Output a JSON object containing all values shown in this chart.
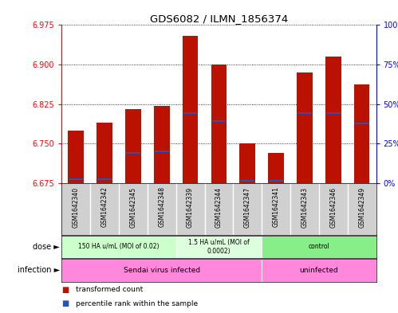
{
  "title": "GDS6082 / ILMN_1856374",
  "samples": [
    "GSM1642340",
    "GSM1642342",
    "GSM1642345",
    "GSM1642348",
    "GSM1642339",
    "GSM1642344",
    "GSM1642347",
    "GSM1642341",
    "GSM1642343",
    "GSM1642346",
    "GSM1642349"
  ],
  "transformed_counts": [
    6.775,
    6.79,
    6.815,
    6.822,
    6.955,
    6.9,
    6.75,
    6.732,
    6.885,
    6.915,
    6.863
  ],
  "percentile_values": [
    6.683,
    6.683,
    6.733,
    6.735,
    6.808,
    6.793,
    6.68,
    6.679,
    6.808,
    6.808,
    6.788
  ],
  "ymin": 6.675,
  "ymax": 6.975,
  "yticks": [
    6.675,
    6.75,
    6.825,
    6.9,
    6.975
  ],
  "right_yticks": [
    0,
    25,
    50,
    75,
    100
  ],
  "bar_color": "#bb1100",
  "percentile_color": "#2255bb",
  "dose_groups": [
    {
      "label": "150 HA u/mL (MOI of 0.02)",
      "start": 0,
      "end": 4,
      "color": "#ccffcc"
    },
    {
      "label": "1.5 HA u/mL (MOI of\n0.0002)",
      "start": 4,
      "end": 7,
      "color": "#ddffdd"
    },
    {
      "label": "control",
      "start": 7,
      "end": 11,
      "color": "#88ee88"
    }
  ],
  "infection_groups": [
    {
      "label": "Sendai virus infected",
      "start": 0,
      "end": 7
    },
    {
      "label": "uninfected",
      "start": 7,
      "end": 11
    }
  ],
  "infection_color": "#ff88dd",
  "sample_bg_color": "#d0d0d0",
  "sample_divider_color": "#ffffff"
}
